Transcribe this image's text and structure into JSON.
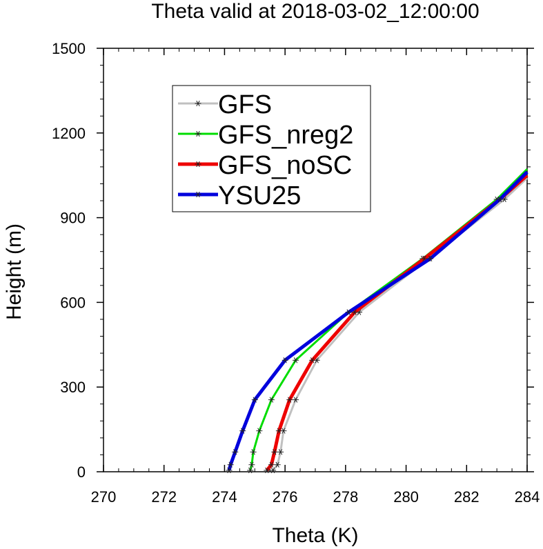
{
  "chart_data": {
    "type": "line",
    "title": "Theta valid at 2018-03-02_12:00:00",
    "xlabel": "Theta (K)",
    "ylabel": "Height (m)",
    "xlim": [
      270,
      284
    ],
    "ylim": [
      0,
      1500
    ],
    "x_ticks": [
      "270",
      "272",
      "274",
      "276",
      "278",
      "280",
      "282",
      "284"
    ],
    "y_ticks": [
      "0",
      "300",
      "600",
      "900",
      "1200",
      "1500"
    ],
    "grid": false,
    "legend_position": "top-left",
    "series": [
      {
        "name": "GFS",
        "color": "#c0c0c0",
        "points": [
          {
            "x": 275.6,
            "y": 5
          },
          {
            "x": 275.75,
            "y": 25
          },
          {
            "x": 275.85,
            "y": 70
          },
          {
            "x": 275.95,
            "y": 145
          },
          {
            "x": 276.35,
            "y": 255
          },
          {
            "x": 277.05,
            "y": 395
          },
          {
            "x": 278.45,
            "y": 565
          },
          {
            "x": 280.75,
            "y": 755
          },
          {
            "x": 283.25,
            "y": 965
          },
          {
            "x": 284.0,
            "y": 1040
          }
        ]
      },
      {
        "name": "GFS_nreg2",
        "color": "#00dd00",
        "points": [
          {
            "x": 274.85,
            "y": 5
          },
          {
            "x": 274.9,
            "y": 25
          },
          {
            "x": 274.95,
            "y": 70
          },
          {
            "x": 275.15,
            "y": 145
          },
          {
            "x": 275.55,
            "y": 255
          },
          {
            "x": 276.35,
            "y": 395
          },
          {
            "x": 278.1,
            "y": 565
          },
          {
            "x": 280.55,
            "y": 755
          },
          {
            "x": 283.0,
            "y": 965
          },
          {
            "x": 284.0,
            "y": 1072
          }
        ]
      },
      {
        "name": "GFS_noSC",
        "color": "#ee0000",
        "points": [
          {
            "x": 275.4,
            "y": 5
          },
          {
            "x": 275.55,
            "y": 25
          },
          {
            "x": 275.65,
            "y": 70
          },
          {
            "x": 275.8,
            "y": 145
          },
          {
            "x": 276.15,
            "y": 255
          },
          {
            "x": 276.9,
            "y": 395
          },
          {
            "x": 278.3,
            "y": 565
          },
          {
            "x": 280.6,
            "y": 755
          },
          {
            "x": 283.1,
            "y": 965
          },
          {
            "x": 284.0,
            "y": 1050
          }
        ]
      },
      {
        "name": "YSU25",
        "color": "#0000dd",
        "points": [
          {
            "x": 274.15,
            "y": 5
          },
          {
            "x": 274.2,
            "y": 25
          },
          {
            "x": 274.35,
            "y": 70
          },
          {
            "x": 274.6,
            "y": 145
          },
          {
            "x": 275.0,
            "y": 255
          },
          {
            "x": 276.0,
            "y": 395
          },
          {
            "x": 278.1,
            "y": 565
          },
          {
            "x": 280.8,
            "y": 755
          },
          {
            "x": 283.1,
            "y": 965
          },
          {
            "x": 284.0,
            "y": 1062
          }
        ]
      }
    ]
  }
}
